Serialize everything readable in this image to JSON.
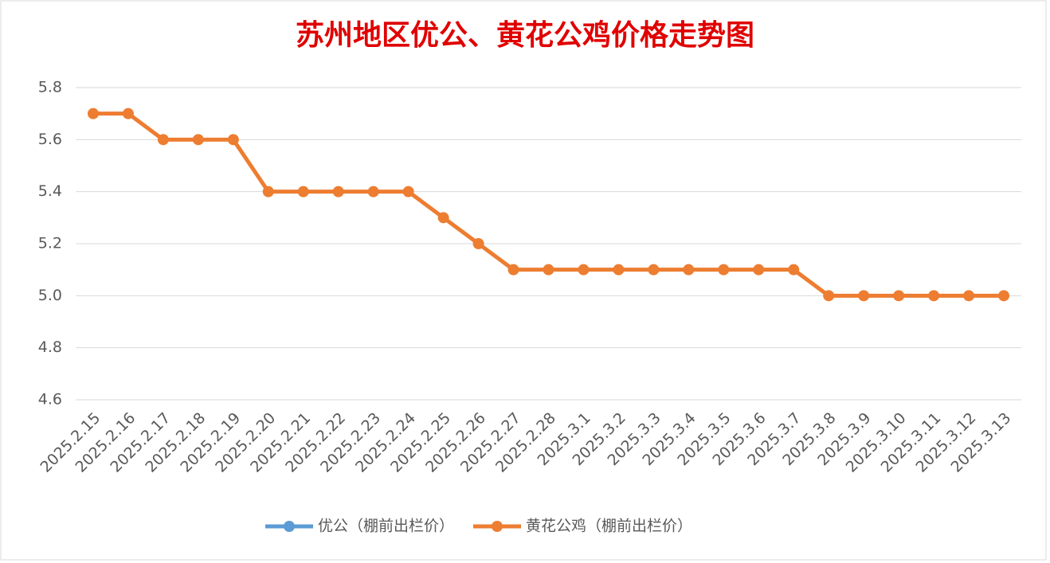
{
  "chart_data": {
    "type": "line",
    "title": "苏州地区优公、黄花公鸡价格走势图",
    "categories": [
      "2025.2.15",
      "2025.2.16",
      "2025.2.17",
      "2025.2.18",
      "2025.2.19",
      "2025.2.20",
      "2025.2.21",
      "2025.2.22",
      "2025.2.23",
      "2025.2.24",
      "2025.2.25",
      "2025.2.26",
      "2025.2.27",
      "2025.2.28",
      "2025.3.1",
      "2025.3.2",
      "2025.3.3",
      "2025.3.4",
      "2025.3.5",
      "2025.3.6",
      "2025.3.7",
      "2025.3.8",
      "2025.3.9",
      "2025.3.10",
      "2025.3.11",
      "2025.3.12",
      "2025.3.13"
    ],
    "series": [
      {
        "name": "优公（棚前出栏价）",
        "color": "#5b9bd5",
        "values": [
          null,
          null,
          null,
          null,
          null,
          null,
          null,
          null,
          null,
          null,
          null,
          null,
          null,
          null,
          null,
          null,
          null,
          null,
          null,
          null,
          null,
          null,
          null,
          null,
          null,
          null,
          null
        ]
      },
      {
        "name": "黄花公鸡（棚前出栏价）",
        "color": "#ed7d31",
        "values": [
          5.7,
          5.7,
          5.6,
          5.6,
          5.6,
          5.4,
          5.4,
          5.4,
          5.4,
          5.4,
          5.3,
          5.2,
          5.1,
          5.1,
          5.1,
          5.1,
          5.1,
          5.1,
          5.1,
          5.1,
          5.1,
          5.0,
          5.0,
          5.0,
          5.0,
          5.0,
          5.0
        ]
      }
    ],
    "ylim": [
      4.6,
      5.8
    ],
    "yticks": [
      4.6,
      4.8,
      {
        "value": 5.0,
        "label": "5.0"
      },
      5.2,
      5.4,
      5.6,
      5.8
    ],
    "grid": true,
    "legend": "bottom"
  }
}
